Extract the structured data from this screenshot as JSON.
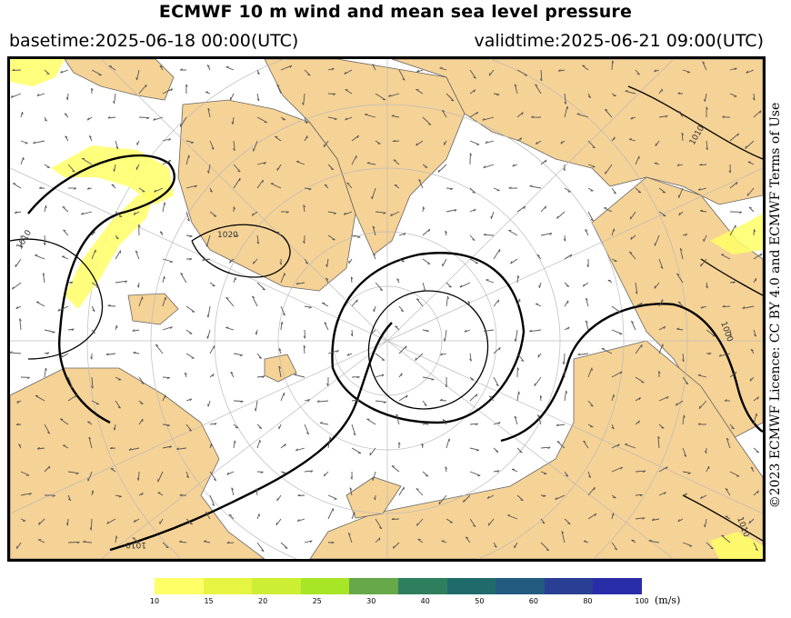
{
  "header": {
    "title": "ECMWF 10 m wind and mean sea level pressure",
    "basetime": "basetime:2025-06-18 00:00(UTC)",
    "validtime": "validtime:2025-06-21 09:00(UTC)"
  },
  "copyright": "©2023 ECMWF Licence: CC BY 4.0 and ECMWF Terms of Use",
  "legend": {
    "unit": "(m/s)",
    "ticks": [
      "10",
      "15",
      "20",
      "25",
      "30",
      "40",
      "50",
      "60",
      "80",
      "100"
    ],
    "colors": [
      "#ffff66",
      "#e6f542",
      "#ccee33",
      "#a6e626",
      "#66a84a",
      "#2e7f5e",
      "#1f6b6b",
      "#225a80",
      "#283f94",
      "#2a2da8"
    ]
  },
  "map": {
    "land_color": "#f5d295",
    "sea_color": "#ffffff",
    "wind_highlight_color": "#ffff66",
    "isobar_labels": [
      "1010",
      "1020",
      "1010",
      "1000",
      "1010",
      "1010"
    ]
  }
}
